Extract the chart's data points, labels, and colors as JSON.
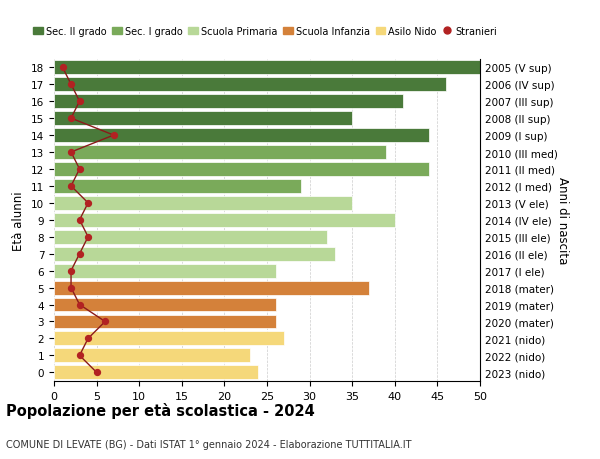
{
  "ages": [
    18,
    17,
    16,
    15,
    14,
    13,
    12,
    11,
    10,
    9,
    8,
    7,
    6,
    5,
    4,
    3,
    2,
    1,
    0
  ],
  "bar_values": [
    50,
    46,
    41,
    35,
    44,
    39,
    44,
    29,
    35,
    40,
    32,
    33,
    26,
    37,
    26,
    26,
    27,
    23,
    24
  ],
  "bar_colors": [
    "#4a7a3a",
    "#4a7a3a",
    "#4a7a3a",
    "#4a7a3a",
    "#4a7a3a",
    "#7aaa5a",
    "#7aaa5a",
    "#7aaa5a",
    "#b8d898",
    "#b8d898",
    "#b8d898",
    "#b8d898",
    "#b8d898",
    "#d4813a",
    "#d4813a",
    "#d4813a",
    "#f5d87a",
    "#f5d87a",
    "#f5d87a"
  ],
  "right_labels_ordered": [
    "2023 (nido)",
    "2022 (nido)",
    "2021 (nido)",
    "2020 (mater)",
    "2019 (mater)",
    "2018 (mater)",
    "2017 (I ele)",
    "2016 (II ele)",
    "2015 (III ele)",
    "2014 (IV ele)",
    "2013 (V ele)",
    "2012 (I med)",
    "2011 (II med)",
    "2010 (III med)",
    "2009 (I sup)",
    "2008 (II sup)",
    "2007 (III sup)",
    "2006 (IV sup)",
    "2005 (V sup)"
  ],
  "stranieri_values": [
    1,
    2,
    3,
    2,
    7,
    2,
    3,
    2,
    4,
    3,
    4,
    3,
    2,
    2,
    3,
    6,
    4,
    3,
    5
  ],
  "legend_labels": [
    "Sec. II grado",
    "Sec. I grado",
    "Scuola Primaria",
    "Scuola Infanzia",
    "Asilo Nido",
    "Stranieri"
  ],
  "legend_colors": [
    "#4a7a3a",
    "#7aaa5a",
    "#b8d898",
    "#d4813a",
    "#f5d87a",
    "#b22222"
  ],
  "title": "Popolazione per età scolastica - 2024",
  "subtitle": "COMUNE DI LEVATE (BG) - Dati ISTAT 1° gennaio 2024 - Elaborazione TUTTITALIA.IT",
  "ylabel": "Età alunni",
  "right_ylabel": "Anni di nascita",
  "xlim": [
    0,
    50
  ]
}
